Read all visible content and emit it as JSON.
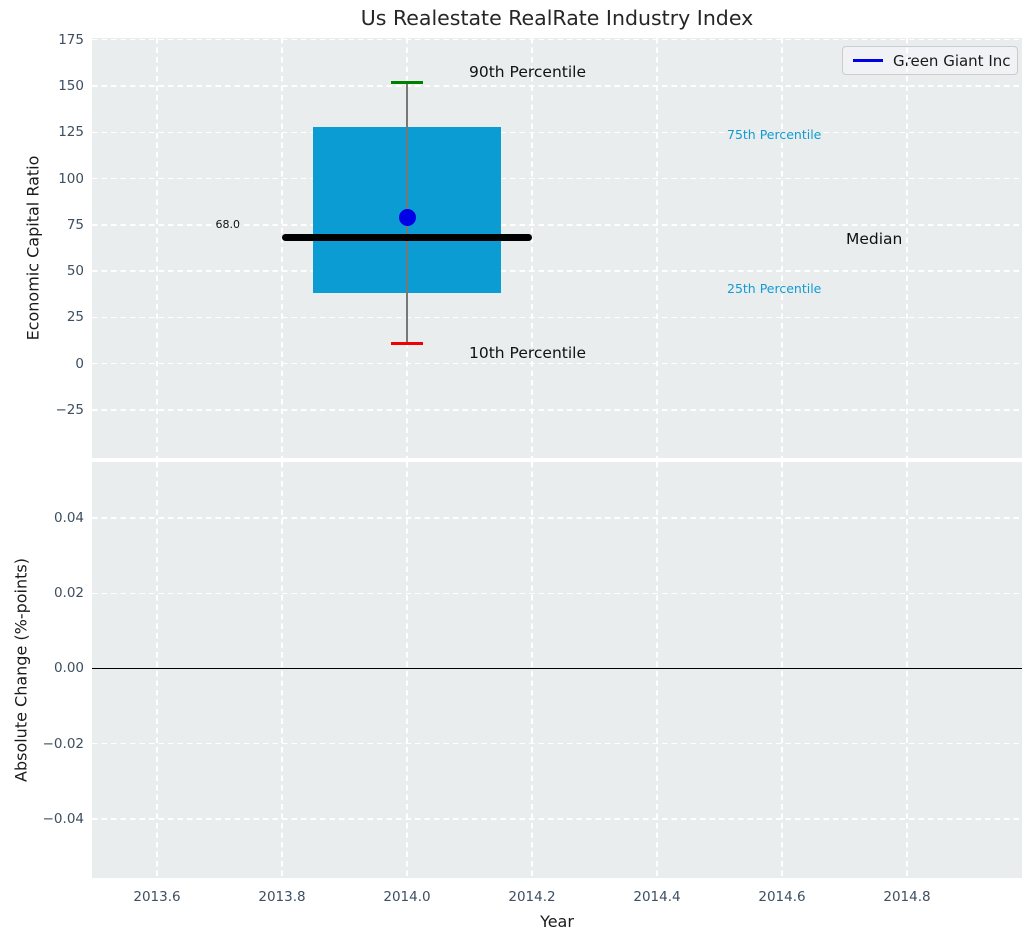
{
  "title": "Us Realestate RealRate Industry Index",
  "legend": {
    "label": "Green Giant Inc"
  },
  "colors": {
    "plot_bg": "#e9edee",
    "grid": "#ffffff",
    "box_fill": "#0a9cd3",
    "whisker": "#777777",
    "p90_cap": "#008000",
    "p10_cap": "#f00000",
    "median_line": "#000000",
    "company": "#0000e6",
    "zero_line": "#000000",
    "tick_label": "#3d4f60",
    "percentile_text": "#119bd0"
  },
  "chart_data": [
    {
      "type": "box",
      "title": "Us Realestate RealRate Industry Index",
      "ylabel": "Economic Capital Ratio",
      "x": 2014.0,
      "xlim": [
        2013.496,
        2014.984
      ],
      "ylim": [
        -51,
        176
      ],
      "grid": true,
      "box": {
        "p10": 11,
        "p25": 38,
        "median": 68,
        "p75": 128,
        "p90": 152
      },
      "median_value_label": "68.0",
      "company_point": {
        "series": "Green Giant Inc",
        "x": 2014.0,
        "y": 79
      },
      "box_half_width": 0.15,
      "median_half_width": 0.2,
      "cap_half_width": 0.025,
      "yticks": [
        175,
        150,
        125,
        100,
        75,
        50,
        25,
        0,
        -25
      ],
      "ytick_labels": [
        "175",
        "150",
        "125",
        "100",
        "75",
        "50",
        "25",
        "0",
        "−25"
      ],
      "annotations": {
        "p90": "90th Percentile",
        "p75": "75th Percentile",
        "median": "Median",
        "p25": "25th Percentile",
        "p10": "10th Percentile"
      },
      "legend": {
        "entries": [
          "Green Giant Inc"
        ],
        "position": "upper right"
      }
    },
    {
      "type": "line",
      "ylabel": "Absolute Change (%-points)",
      "xlabel": "Year",
      "xlim": [
        2013.496,
        2014.984
      ],
      "ylim": [
        -0.0557,
        0.0549
      ],
      "grid": true,
      "zero_line": 0.0,
      "yticks": [
        0.04,
        0.02,
        0.0,
        -0.02,
        -0.04
      ],
      "ytick_labels": [
        "0.04",
        "0.02",
        "0.00",
        "−0.02",
        "−0.04"
      ],
      "xticks": [
        2013.6,
        2013.8,
        2014.0,
        2014.2,
        2014.4,
        2014.6,
        2014.8
      ],
      "xtick_labels": [
        "2013.6",
        "2013.8",
        "2014.0",
        "2014.2",
        "2014.4",
        "2014.6",
        "2014.8"
      ],
      "series": [
        {
          "name": "Green Giant Inc",
          "points": []
        }
      ]
    }
  ]
}
